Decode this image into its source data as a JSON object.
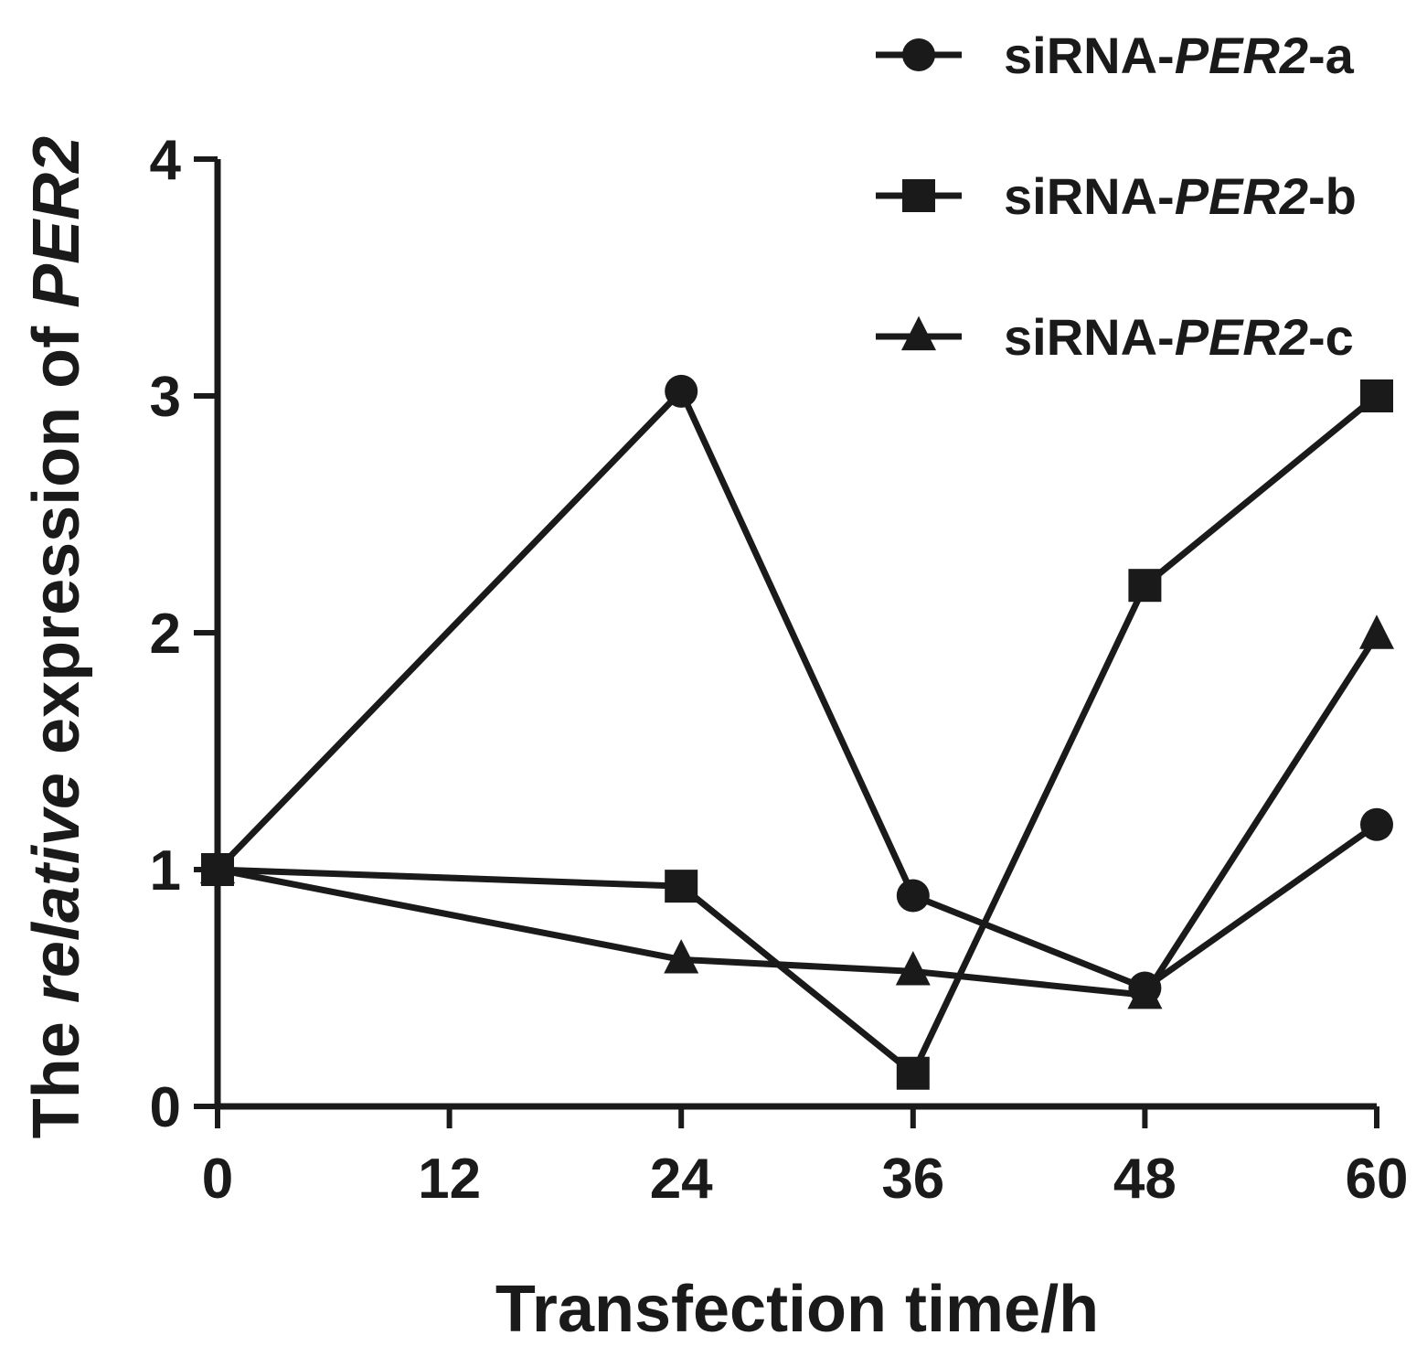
{
  "chart_data": {
    "type": "line",
    "x": [
      0,
      24,
      36,
      48,
      60
    ],
    "xticks": [
      0,
      12,
      24,
      36,
      48,
      60
    ],
    "yticks": [
      0,
      1,
      2,
      3,
      4
    ],
    "xlim": [
      0,
      60
    ],
    "ylim": [
      0,
      4
    ],
    "xlabel": "Transfection time/h",
    "ylabel": {
      "prefix": "The ",
      "italic": "relative",
      "middle": " expression of ",
      "italic2": "PER2"
    },
    "grid": false,
    "legend_position": "top-right",
    "series": [
      {
        "name": "siRNA-PER2-a",
        "name_parts": [
          "siRNA-",
          "PER2",
          "-a"
        ],
        "marker": "circle",
        "values": [
          1.0,
          3.02,
          0.89,
          0.5,
          1.19
        ]
      },
      {
        "name": "siRNA-PER2-b",
        "name_parts": [
          "siRNA-",
          "PER2",
          "-b"
        ],
        "marker": "square",
        "values": [
          1.0,
          0.93,
          0.14,
          2.2,
          3.0
        ]
      },
      {
        "name": "siRNA-PER2-c",
        "name_parts": [
          "siRNA-",
          "PER2",
          "-c"
        ],
        "marker": "triangle",
        "values": [
          1.0,
          0.62,
          0.57,
          0.47,
          1.99
        ]
      }
    ],
    "colors": {
      "ink": "#1a1a1a",
      "background": "#ffffff"
    }
  }
}
